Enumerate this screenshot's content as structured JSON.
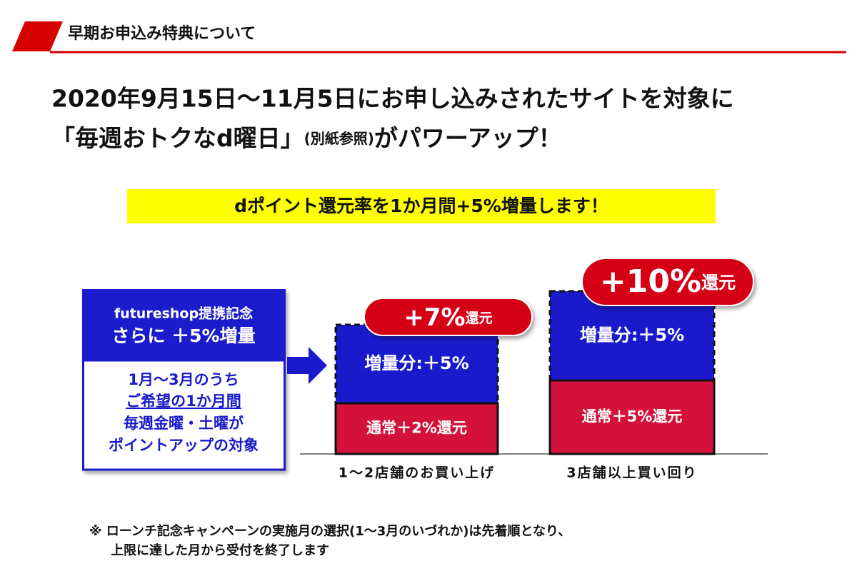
{
  "header": {
    "title": "早期お申込み特典について"
  },
  "headline": {
    "line1": "2020年9月15日～11月5日にお申し込みされたサイトを対象に",
    "line2": [
      "「毎週おトクなd曜日」",
      "(別紙参照)",
      "がパワーアップ！"
    ]
  },
  "banner": "dポイント還元率を1か月間+5%増量します！",
  "campaign": {
    "top": [
      "futureshop提携記念",
      "さらに ＋5%増量"
    ],
    "bottom": [
      "1月～3月のうち",
      "ご希望の1か月間",
      "毎週金曜・土曜が",
      "ポイントアップの対象"
    ]
  },
  "columns": [
    {
      "badge": [
        "+7%",
        "還元"
      ],
      "top": "増量分:＋5%",
      "bottom": "通常＋2%還元",
      "label": "1～2店舗のお買い上げ"
    },
    {
      "badge": [
        "+10%",
        "還元"
      ],
      "top": "増量分:＋5%",
      "bottom": "通常＋5%還元",
      "label": "3店舗以上買い回り"
    }
  ],
  "note": [
    "※ ローンチ記念キャンペーンの実施月の選択(1～3月のいづれか)は先着順となり、",
    "上限に達した月から受付を終了します"
  ]
}
